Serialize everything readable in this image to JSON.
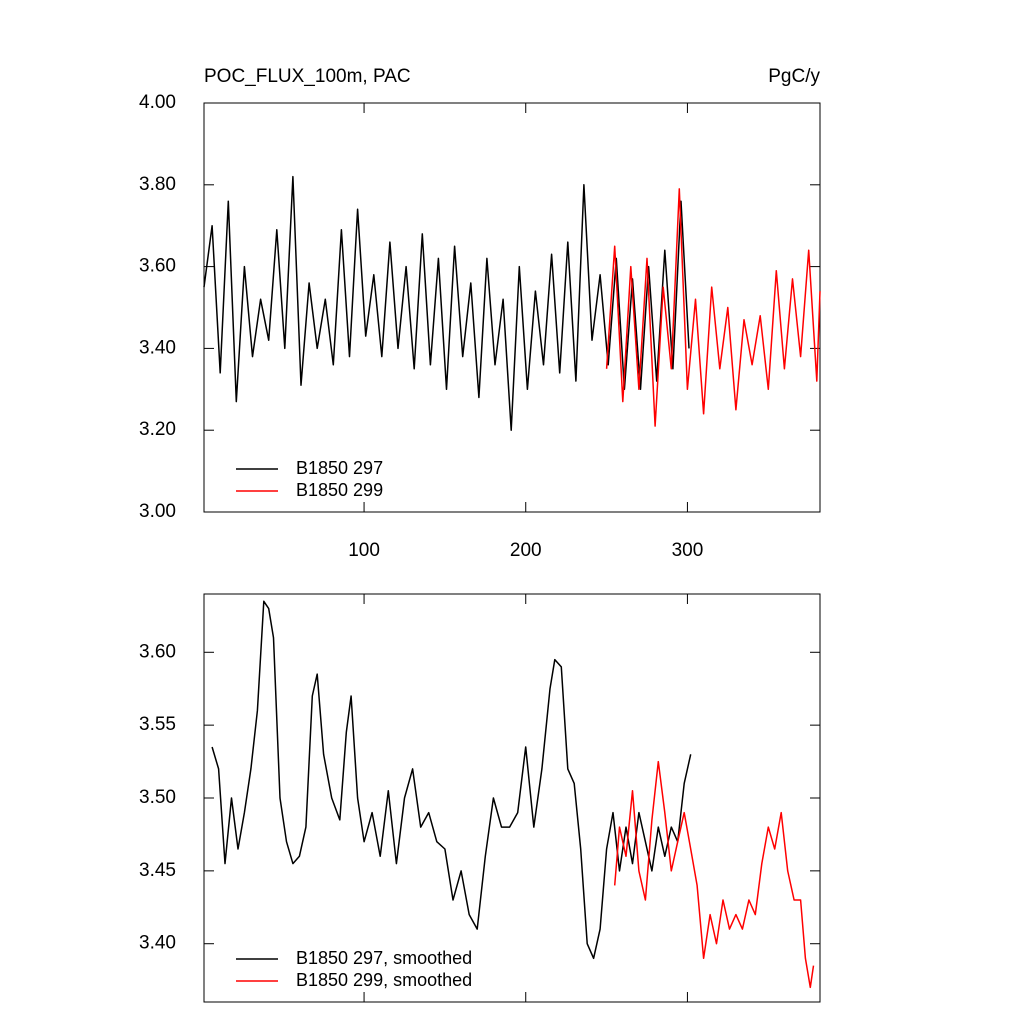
{
  "chart_data": [
    {
      "type": "line",
      "title": "POC_FLUX_100m, PAC",
      "units": "PgC/y",
      "xlim": [
        1,
        382
      ],
      "xticks": [
        100,
        200,
        300
      ],
      "xtick_labels": true,
      "ylim": [
        3.0,
        4.0
      ],
      "yticks": [
        {
          "value": 3.0,
          "label": "3.00"
        },
        {
          "value": 3.2,
          "label": "3.20"
        },
        {
          "value": 3.4,
          "label": "3.40"
        },
        {
          "value": 3.6,
          "label": "3.60"
        },
        {
          "value": 3.8,
          "label": "3.80"
        },
        {
          "value": 4.0,
          "label": "4.00"
        }
      ],
      "legend": "lower left",
      "series": [
        {
          "name": "B1850 297",
          "color": "#000000",
          "x": [
            1,
            6,
            11,
            16,
            21,
            26,
            31,
            36,
            41,
            46,
            51,
            56,
            61,
            66,
            71,
            76,
            81,
            86,
            91,
            96,
            101,
            106,
            111,
            116,
            121,
            126,
            131,
            136,
            141,
            146,
            151,
            156,
            161,
            166,
            171,
            176,
            181,
            186,
            191,
            196,
            201,
            206,
            211,
            216,
            221,
            226,
            231,
            236,
            241,
            246,
            251,
            256,
            261,
            266,
            271,
            276,
            281,
            286,
            291,
            296,
            301
          ],
          "values": [
            3.55,
            3.7,
            3.34,
            3.76,
            3.27,
            3.6,
            3.38,
            3.52,
            3.42,
            3.69,
            3.4,
            3.82,
            3.31,
            3.56,
            3.4,
            3.52,
            3.36,
            3.69,
            3.38,
            3.74,
            3.43,
            3.58,
            3.38,
            3.66,
            3.4,
            3.6,
            3.35,
            3.68,
            3.36,
            3.62,
            3.3,
            3.65,
            3.38,
            3.56,
            3.28,
            3.62,
            3.36,
            3.52,
            3.2,
            3.6,
            3.3,
            3.54,
            3.36,
            3.63,
            3.34,
            3.66,
            3.32,
            3.8,
            3.42,
            3.58,
            3.36,
            3.62,
            3.3,
            3.57,
            3.3,
            3.6,
            3.32,
            3.64,
            3.35,
            3.76,
            3.4
          ]
        },
        {
          "name": "B1850 299",
          "color": "#ff0000",
          "x": [
            250,
            255,
            260,
            265,
            270,
            275,
            280,
            285,
            290,
            295,
            300,
            305,
            310,
            315,
            320,
            325,
            330,
            335,
            340,
            345,
            350,
            355,
            360,
            365,
            370,
            375,
            380,
            382
          ],
          "values": [
            3.35,
            3.65,
            3.27,
            3.6,
            3.3,
            3.62,
            3.21,
            3.55,
            3.35,
            3.79,
            3.3,
            3.52,
            3.24,
            3.55,
            3.35,
            3.5,
            3.25,
            3.47,
            3.36,
            3.48,
            3.3,
            3.59,
            3.35,
            3.57,
            3.38,
            3.64,
            3.32,
            3.54
          ]
        }
      ]
    },
    {
      "type": "line",
      "xlim": [
        1,
        382
      ],
      "xticks": [
        100,
        200,
        300
      ],
      "xtick_labels": false,
      "ylim": [
        3.36,
        3.64
      ],
      "yticks": [
        {
          "value": 3.4,
          "label": "3.40"
        },
        3.45,
        {
          "value": 3.5,
          "label": "3.50"
        },
        3.55,
        {
          "value": 3.6,
          "label": "3.60"
        }
      ],
      "legend": "lower left",
      "series": [
        {
          "name": "B1850 297, smoothed",
          "color": "#000000",
          "x": [
            6,
            10,
            14,
            18,
            22,
            26,
            30,
            34,
            38,
            41,
            44,
            48,
            52,
            56,
            60,
            64,
            68,
            71,
            75,
            80,
            85,
            89,
            92,
            96,
            100,
            105,
            110,
            115,
            120,
            125,
            130,
            135,
            140,
            145,
            150,
            155,
            160,
            165,
            170,
            175,
            180,
            185,
            190,
            195,
            200,
            205,
            210,
            215,
            218,
            222,
            226,
            230,
            234,
            238,
            242,
            246,
            250,
            254,
            258,
            262,
            266,
            270,
            274,
            278,
            282,
            286,
            290,
            294,
            298,
            302
          ],
          "values": [
            3.535,
            3.52,
            3.455,
            3.5,
            3.465,
            3.49,
            3.52,
            3.56,
            3.635,
            3.63,
            3.61,
            3.5,
            3.47,
            3.455,
            3.46,
            3.48,
            3.57,
            3.585,
            3.53,
            3.5,
            3.485,
            3.545,
            3.57,
            3.5,
            3.47,
            3.49,
            3.46,
            3.505,
            3.455,
            3.5,
            3.52,
            3.48,
            3.49,
            3.47,
            3.465,
            3.43,
            3.45,
            3.42,
            3.41,
            3.46,
            3.5,
            3.48,
            3.48,
            3.49,
            3.535,
            3.48,
            3.52,
            3.575,
            3.595,
            3.59,
            3.52,
            3.51,
            3.465,
            3.4,
            3.39,
            3.41,
            3.465,
            3.49,
            3.45,
            3.48,
            3.455,
            3.49,
            3.47,
            3.45,
            3.48,
            3.46,
            3.48,
            3.47,
            3.51,
            3.53
          ]
        },
        {
          "name": "B1850 299, smoothed",
          "color": "#ff0000",
          "x": [
            255,
            258,
            262,
            266,
            270,
            274,
            278,
            282,
            286,
            290,
            294,
            298,
            302,
            306,
            310,
            314,
            318,
            322,
            326,
            330,
            334,
            338,
            342,
            346,
            350,
            354,
            358,
            362,
            366,
            370,
            373,
            376,
            378
          ],
          "values": [
            3.44,
            3.48,
            3.46,
            3.505,
            3.45,
            3.43,
            3.485,
            3.525,
            3.49,
            3.45,
            3.47,
            3.49,
            3.465,
            3.44,
            3.39,
            3.42,
            3.4,
            3.43,
            3.41,
            3.42,
            3.41,
            3.43,
            3.42,
            3.455,
            3.48,
            3.465,
            3.49,
            3.45,
            3.43,
            3.43,
            3.39,
            3.37,
            3.385
          ]
        }
      ]
    }
  ]
}
